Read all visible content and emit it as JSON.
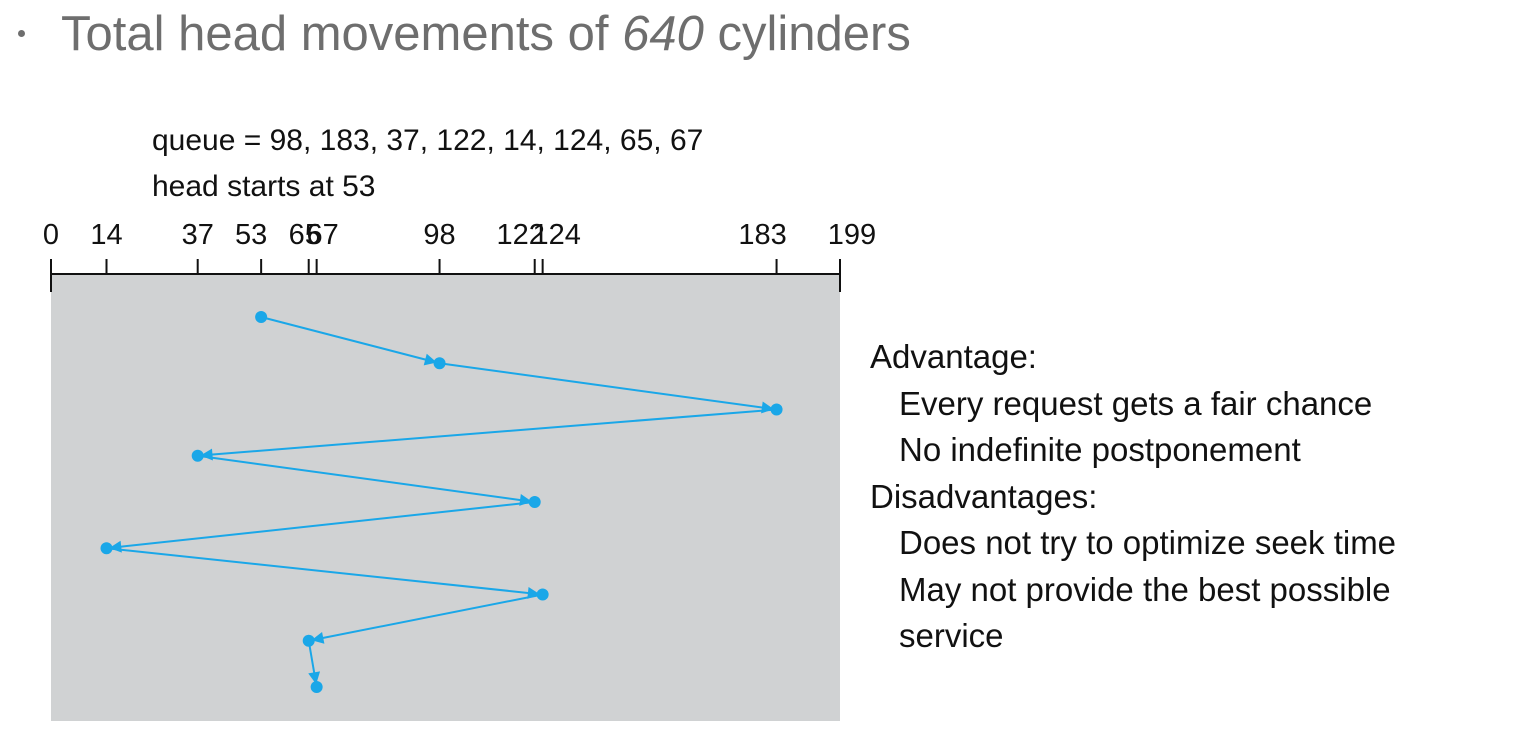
{
  "bullet": {
    "prefix": "Total head movements of ",
    "value": "640",
    "suffix": " cylinders"
  },
  "diagram": {
    "queue_label": "queue = 98, 183, 37, 122, 14, 124, 65, 67",
    "head_label": "head starts at 53",
    "cylinder_range": [
      0,
      199
    ],
    "axis_ticks": [
      0,
      14,
      37,
      53,
      65,
      67,
      98,
      122,
      124,
      183,
      199
    ],
    "tick_labels": [
      {
        "text": "0",
        "anchor": 0
      },
      {
        "text": "14",
        "anchor": 14
      },
      {
        "text": "37",
        "anchor": 37
      },
      {
        "text": "53",
        "anchor": 53
      },
      {
        "text": "65",
        "anchor": 65
      },
      {
        "text": "67",
        "anchor": 67
      },
      {
        "text": "98",
        "anchor": 98
      },
      {
        "text": "122",
        "anchor": 122
      },
      {
        "text": "124",
        "anchor": 124
      },
      {
        "text": "183",
        "anchor": 183
      },
      {
        "text": "199",
        "anchor": 199
      }
    ],
    "service_order": [
      53,
      98,
      183,
      37,
      122,
      14,
      124,
      65,
      67
    ],
    "colors": {
      "path": "#1aa7e8",
      "background": "#d0d2d3",
      "axis": "#111111"
    }
  },
  "side_panel": {
    "advantage_heading": "Advantage:",
    "advantages": [
      "Every request gets a fair chance",
      "No indefinite postponement"
    ],
    "disadvantage_heading": "Disadvantages:",
    "disadvantages": [
      "Does not try to optimize seek time",
      "May not provide the best possible",
      "service"
    ]
  }
}
